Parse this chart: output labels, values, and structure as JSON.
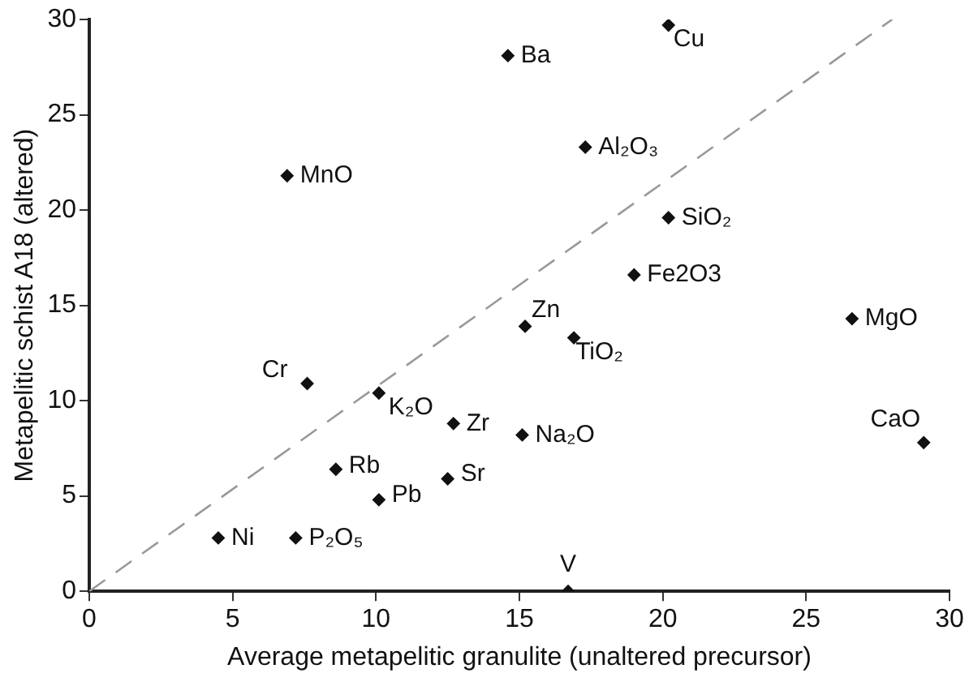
{
  "chart_data": {
    "type": "scatter",
    "xlabel": "Average metapelitic granulite (unaltered precursor)",
    "ylabel": "Metapelitic schist A18 (altered)",
    "xlim": [
      0,
      30
    ],
    "ylim": [
      0,
      30
    ],
    "xticks": [
      0,
      5,
      10,
      15,
      20,
      25,
      30
    ],
    "yticks": [
      0,
      5,
      10,
      15,
      20,
      25,
      30
    ],
    "grid": false,
    "legend": false,
    "marker": "diamond",
    "series": [
      {
        "name": "Ba",
        "color": "#111111",
        "x": [
          14.6
        ],
        "values": [
          28.1
        ]
      },
      {
        "name": "Cu",
        "color": "#111111",
        "x": [
          20.2
        ],
        "values": [
          29.7
        ]
      },
      {
        "name": "MnO",
        "color": "#111111",
        "x": [
          6.9
        ],
        "values": [
          21.8
        ]
      },
      {
        "name": "Al₂O₃",
        "color": "#111111",
        "x": [
          17.3
        ],
        "values": [
          23.3
        ]
      },
      {
        "name": "SiO₂",
        "color": "#111111",
        "x": [
          20.2
        ],
        "values": [
          19.6
        ]
      },
      {
        "name": "Fe2O3",
        "color": "#111111",
        "x": [
          19.0
        ],
        "values": [
          16.6
        ]
      },
      {
        "name": "Zn",
        "color": "#111111",
        "x": [
          15.2
        ],
        "values": [
          13.9
        ]
      },
      {
        "name": "TiO₂",
        "color": "#111111",
        "x": [
          16.9
        ],
        "values": [
          13.3
        ]
      },
      {
        "name": "MgO",
        "color": "#111111",
        "x": [
          26.6
        ],
        "values": [
          14.3
        ]
      },
      {
        "name": "Cr",
        "color": "#111111",
        "x": [
          7.6
        ],
        "values": [
          10.9
        ]
      },
      {
        "name": "K₂O",
        "color": "#111111",
        "x": [
          10.1
        ],
        "values": [
          10.4
        ]
      },
      {
        "name": "Zr",
        "color": "#111111",
        "x": [
          12.7
        ],
        "values": [
          8.8
        ]
      },
      {
        "name": "Na₂O",
        "color": "#111111",
        "x": [
          15.1
        ],
        "values": [
          8.2
        ]
      },
      {
        "name": "CaO",
        "color": "#111111",
        "x": [
          29.1
        ],
        "values": [
          7.8
        ]
      },
      {
        "name": "Rb",
        "color": "#111111",
        "x": [
          8.6
        ],
        "values": [
          6.4
        ]
      },
      {
        "name": "Sr",
        "color": "#111111",
        "x": [
          12.5
        ],
        "values": [
          5.9
        ]
      },
      {
        "name": "Pb",
        "color": "#111111",
        "x": [
          10.1
        ],
        "values": [
          4.8
        ]
      },
      {
        "name": "Ni",
        "color": "#111111",
        "x": [
          4.5
        ],
        "values": [
          2.8
        ]
      },
      {
        "name": "P₂O₅",
        "color": "#111111",
        "x": [
          7.2
        ],
        "values": [
          2.8
        ]
      },
      {
        "name": "V",
        "color": "#111111",
        "x": [
          16.7
        ],
        "values": [
          0
        ]
      },
      {
        "type": "line",
        "color": "#999999",
        "line_style": "dashed",
        "marker": "none",
        "x": [
          0,
          28
        ],
        "values": [
          0,
          30
        ]
      }
    ]
  }
}
